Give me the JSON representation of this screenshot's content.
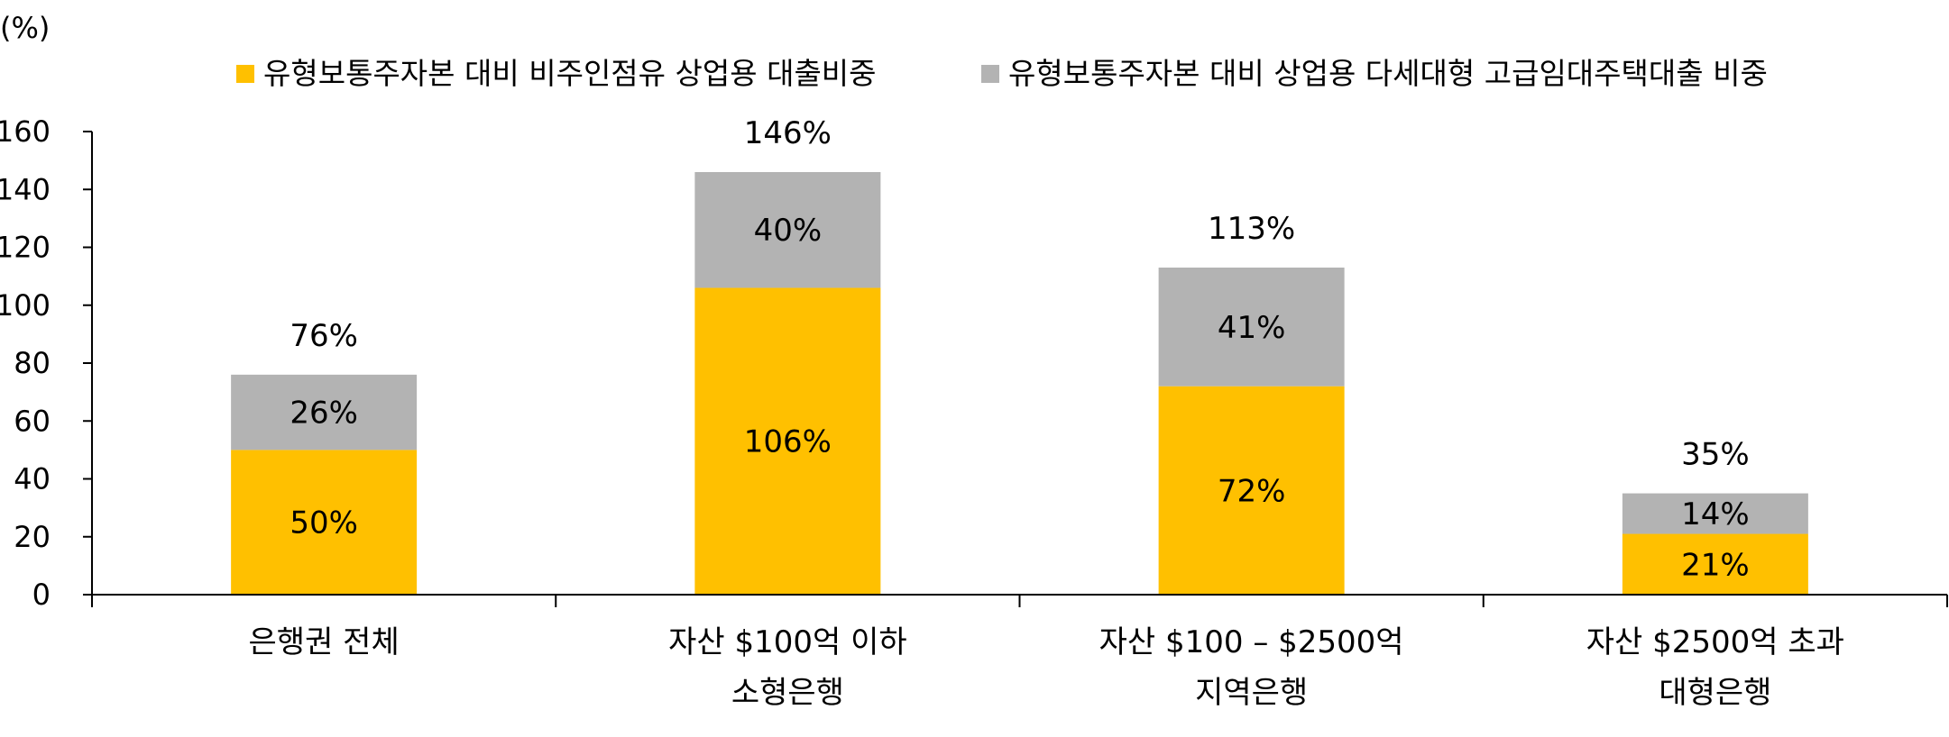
{
  "chart_data": {
    "type": "bar",
    "stacked": true,
    "unit_label": "(%)",
    "categories": [
      [
        "은행권 전체"
      ],
      [
        "자산 $100억 이하",
        "소형은행"
      ],
      [
        "자산 $100 – $2500억",
        "지역은행"
      ],
      [
        "자산 $2500억 초과",
        "대형은행"
      ]
    ],
    "series": [
      {
        "name": "유형보통주자본 대비 비주인점유 상업용 대출비중",
        "color": "#FFC000",
        "values": [
          50,
          106,
          72,
          21
        ],
        "labels": [
          "50%",
          "106%",
          "72%",
          "21%"
        ]
      },
      {
        "name": "유형보통주자본 대비 상업용 다세대형 고급임대주택대출 비중",
        "color": "#B3B3B3",
        "values": [
          26,
          40,
          41,
          14
        ],
        "labels": [
          "26%",
          "40%",
          "41%",
          "14%"
        ]
      }
    ],
    "totals": [
      76,
      146,
      113,
      35
    ],
    "total_labels": [
      "76%",
      "146%",
      "113%",
      "35%"
    ],
    "y_ticks": [
      "0",
      "20",
      "40",
      "60",
      "80",
      "100",
      "120",
      "140",
      "160"
    ],
    "ylim": [
      0,
      160
    ],
    "legend_position": "top",
    "grid": false
  }
}
